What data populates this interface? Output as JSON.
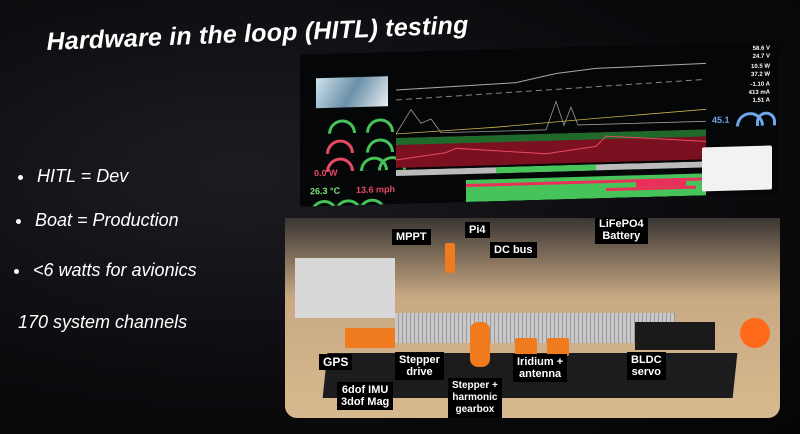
{
  "slide": {
    "title": "Hardware in the loop (HITL) testing",
    "bullets": [
      {
        "text": "HITL = Dev",
        "bulleted": true
      },
      {
        "text": "Boat = Production",
        "bulleted": true
      },
      {
        "text": "<6 watts for avionics",
        "bulleted": true
      },
      {
        "text": "170 system channels",
        "bulleted": false
      }
    ]
  },
  "dashboard": {
    "left_readouts": {
      "power": "0.0 W",
      "temperature": "26.3 °C",
      "speed": "13.6 mph"
    },
    "right_readouts": [
      "58.6 V",
      "24.7 V",
      "10.5 W",
      "37.2 W",
      "-1.10 A",
      "413 mA",
      "1.51 A"
    ],
    "heading_value": "45.1",
    "colors": {
      "green": "#46c45a",
      "red": "#e84a63",
      "blue": "#6fa8e8",
      "dark_red": "#7a1020"
    }
  },
  "photo_labels": {
    "mppt": "MPPT",
    "pi4": "Pi4",
    "dc_bus": "DC bus",
    "battery": [
      "LiFePO4",
      "Battery"
    ],
    "gps": "GPS",
    "imu": [
      "6dof IMU",
      "3dof Mag"
    ],
    "stepper_drive": [
      "Stepper",
      "drive"
    ],
    "stepper_gearbox": [
      "Stepper +",
      "harmonic",
      "gearbox"
    ],
    "iridium": [
      "Iridium +",
      "antenna"
    ],
    "bldc": [
      "BLDC",
      "servo"
    ]
  }
}
